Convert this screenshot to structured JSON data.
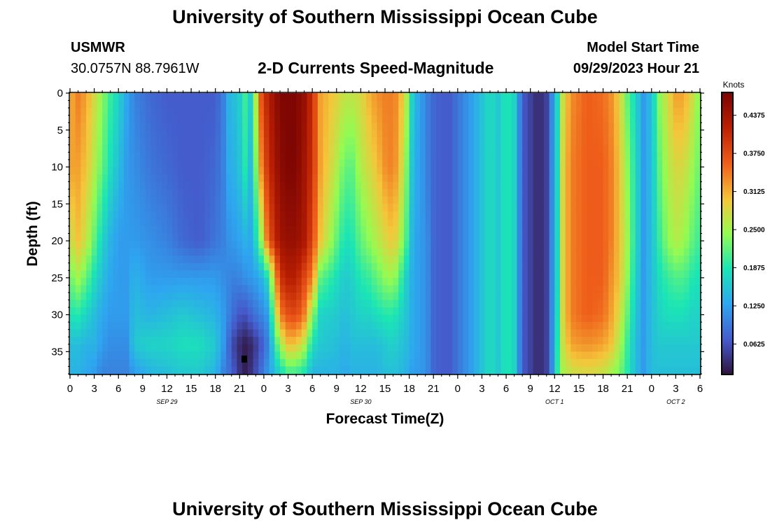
{
  "header": {
    "title": "University of Southern Mississippi Ocean Cube",
    "station": "USMWR",
    "coords": "30.0757N  88.7961W",
    "chart_title": "2-D Currents Speed-Magnitude",
    "model_label": "Model Start Time",
    "model_time": "09/29/2023 Hour 21"
  },
  "footer": {
    "title": "University of Southern Mississippi Ocean Cube"
  },
  "colorbar": {
    "unit": "Knots",
    "ticks": [
      "0.0625",
      "0.1250",
      "0.1875",
      "0.2500",
      "0.3125",
      "0.3750",
      "0.4375"
    ],
    "min": 0.0125,
    "max": 0.475
  },
  "chart_data": {
    "type": "heatmap",
    "title": "2-D Currents Speed-Magnitude",
    "xlabel": "Forecast Time(Z)",
    "ylabel": "Depth (ft)",
    "x_tick_labels": [
      "0",
      "3",
      "6",
      "9",
      "12",
      "15",
      "18",
      "21",
      "0",
      "3",
      "6",
      "9",
      "12",
      "15",
      "18",
      "21",
      "0",
      "3",
      "6",
      "9",
      "12",
      "15",
      "18",
      "21",
      "0",
      "3",
      "6"
    ],
    "x_range_hours": [
      0,
      78
    ],
    "date_labels": [
      {
        "label": "SEP 29",
        "hour": 12
      },
      {
        "label": "SEP 30",
        "hour": 36
      },
      {
        "label": "OCT 1",
        "hour": 60
      },
      {
        "label": "OCT 2",
        "hour": 75
      }
    ],
    "y_tick_labels": [
      "0",
      "5",
      "10",
      "15",
      "20",
      "25",
      "30",
      "35"
    ],
    "y_range_ft": [
      0,
      38
    ],
    "colorbar_unit": "Knots",
    "value_range_knots": [
      0.0125,
      0.475
    ],
    "profiles": {
      "hours": [
        0,
        0.5,
        1,
        2,
        3,
        4,
        5,
        6,
        7,
        8,
        10,
        12,
        14,
        16,
        18,
        19,
        20,
        20.7,
        21.5,
        22.5,
        23.5,
        24.5,
        26,
        27,
        28,
        29,
        30,
        31,
        33,
        34,
        35,
        36,
        37,
        38,
        39,
        40,
        40.5,
        41.5,
        42.5,
        43.5,
        44.5,
        45,
        46,
        47,
        48,
        50,
        52,
        53,
        54,
        55,
        56,
        57,
        58,
        59,
        59.5,
        60,
        60.5,
        61,
        62,
        64,
        66,
        67,
        68,
        69,
        70,
        71,
        72,
        73,
        74,
        75,
        76,
        77,
        78
      ],
      "depths_ft": [
        0,
        10,
        20,
        25,
        30,
        34,
        38
      ],
      "speed_knots": [
        [
          0.3,
          0.3,
          0.26,
          0.22,
          0.18,
          0.15,
          0.14
        ],
        [
          0.33,
          0.33,
          0.29,
          0.24,
          0.19,
          0.15,
          0.14
        ],
        [
          0.34,
          0.32,
          0.3,
          0.25,
          0.19,
          0.15,
          0.14
        ],
        [
          0.32,
          0.3,
          0.27,
          0.22,
          0.17,
          0.14,
          0.13
        ],
        [
          0.28,
          0.26,
          0.22,
          0.18,
          0.15,
          0.14,
          0.12
        ],
        [
          0.24,
          0.22,
          0.17,
          0.15,
          0.13,
          0.12,
          0.1
        ],
        [
          0.2,
          0.18,
          0.14,
          0.13,
          0.12,
          0.11,
          0.1
        ],
        [
          0.17,
          0.15,
          0.12,
          0.12,
          0.12,
          0.11,
          0.1
        ],
        [
          0.13,
          0.12,
          0.12,
          0.12,
          0.12,
          0.11,
          0.1
        ],
        [
          0.1,
          0.11,
          0.12,
          0.14,
          0.15,
          0.16,
          0.12
        ],
        [
          0.08,
          0.09,
          0.11,
          0.12,
          0.14,
          0.17,
          0.14
        ],
        [
          0.07,
          0.08,
          0.1,
          0.12,
          0.15,
          0.17,
          0.15
        ],
        [
          0.07,
          0.07,
          0.08,
          0.12,
          0.16,
          0.18,
          0.16
        ],
        [
          0.07,
          0.07,
          0.07,
          0.12,
          0.15,
          0.18,
          0.16
        ],
        [
          0.07,
          0.08,
          0.09,
          0.12,
          0.14,
          0.16,
          0.14
        ],
        [
          0.1,
          0.1,
          0.1,
          0.11,
          0.12,
          0.12,
          0.1
        ],
        [
          0.16,
          0.15,
          0.12,
          0.1,
          0.09,
          0.06,
          0.08
        ],
        [
          0.14,
          0.13,
          0.12,
          0.1,
          0.07,
          0.04,
          0.05
        ],
        [
          0.21,
          0.2,
          0.14,
          0.11,
          0.06,
          0.02,
          0.02
        ],
        [
          0.16,
          0.14,
          0.13,
          0.12,
          0.08,
          0.03,
          0.04
        ],
        [
          0.36,
          0.32,
          0.22,
          0.13,
          0.1,
          0.06,
          0.08
        ],
        [
          0.42,
          0.4,
          0.36,
          0.18,
          0.12,
          0.1,
          0.12
        ],
        [
          0.47,
          0.46,
          0.44,
          0.4,
          0.34,
          0.25,
          0.17
        ],
        [
          0.47,
          0.47,
          0.45,
          0.42,
          0.37,
          0.3,
          0.2
        ],
        [
          0.47,
          0.47,
          0.45,
          0.42,
          0.38,
          0.3,
          0.2
        ],
        [
          0.45,
          0.44,
          0.43,
          0.38,
          0.34,
          0.26,
          0.18
        ],
        [
          0.4,
          0.4,
          0.38,
          0.34,
          0.24,
          0.18,
          0.14
        ],
        [
          0.32,
          0.32,
          0.3,
          0.22,
          0.17,
          0.16,
          0.14
        ],
        [
          0.29,
          0.26,
          0.22,
          0.18,
          0.16,
          0.15,
          0.14
        ],
        [
          0.27,
          0.22,
          0.18,
          0.16,
          0.15,
          0.14,
          0.13
        ],
        [
          0.27,
          0.22,
          0.19,
          0.17,
          0.16,
          0.15,
          0.14
        ],
        [
          0.28,
          0.26,
          0.22,
          0.19,
          0.17,
          0.15,
          0.14
        ],
        [
          0.31,
          0.28,
          0.24,
          0.2,
          0.17,
          0.15,
          0.14
        ],
        [
          0.33,
          0.3,
          0.26,
          0.22,
          0.18,
          0.15,
          0.14
        ],
        [
          0.34,
          0.33,
          0.28,
          0.24,
          0.19,
          0.16,
          0.15
        ],
        [
          0.34,
          0.34,
          0.3,
          0.25,
          0.19,
          0.17,
          0.15
        ],
        [
          0.33,
          0.32,
          0.28,
          0.23,
          0.18,
          0.16,
          0.15
        ],
        [
          0.28,
          0.25,
          0.22,
          0.17,
          0.16,
          0.15,
          0.14
        ],
        [
          0.15,
          0.14,
          0.13,
          0.13,
          0.13,
          0.13,
          0.12
        ],
        [
          0.12,
          0.12,
          0.12,
          0.12,
          0.12,
          0.12,
          0.12
        ],
        [
          0.09,
          0.09,
          0.1,
          0.1,
          0.1,
          0.1,
          0.1
        ],
        [
          0.08,
          0.08,
          0.08,
          0.08,
          0.08,
          0.08,
          0.08
        ],
        [
          0.07,
          0.07,
          0.07,
          0.07,
          0.07,
          0.07,
          0.07
        ],
        [
          0.07,
          0.07,
          0.07,
          0.07,
          0.07,
          0.07,
          0.07
        ],
        [
          0.09,
          0.09,
          0.09,
          0.09,
          0.09,
          0.09,
          0.09
        ],
        [
          0.13,
          0.13,
          0.13,
          0.13,
          0.13,
          0.13,
          0.13
        ],
        [
          0.18,
          0.18,
          0.18,
          0.18,
          0.18,
          0.18,
          0.18
        ],
        [
          0.16,
          0.16,
          0.16,
          0.16,
          0.16,
          0.16,
          0.16
        ],
        [
          0.19,
          0.19,
          0.19,
          0.19,
          0.19,
          0.19,
          0.19
        ],
        [
          0.17,
          0.17,
          0.17,
          0.17,
          0.17,
          0.17,
          0.17
        ],
        [
          0.07,
          0.07,
          0.07,
          0.07,
          0.07,
          0.07,
          0.07
        ],
        [
          0.05,
          0.05,
          0.05,
          0.05,
          0.05,
          0.05,
          0.05
        ],
        [
          0.03,
          0.03,
          0.03,
          0.03,
          0.03,
          0.03,
          0.03
        ],
        [
          0.05,
          0.05,
          0.05,
          0.05,
          0.05,
          0.05,
          0.05
        ],
        [
          0.09,
          0.09,
          0.09,
          0.09,
          0.09,
          0.09,
          0.09
        ],
        [
          0.14,
          0.14,
          0.14,
          0.14,
          0.14,
          0.14,
          0.14
        ],
        [
          0.19,
          0.19,
          0.19,
          0.19,
          0.2,
          0.21,
          0.22
        ],
        [
          0.27,
          0.28,
          0.28,
          0.28,
          0.28,
          0.27,
          0.25
        ],
        [
          0.33,
          0.34,
          0.34,
          0.34,
          0.34,
          0.32,
          0.27
        ],
        [
          0.36,
          0.36,
          0.36,
          0.36,
          0.36,
          0.33,
          0.28
        ],
        [
          0.35,
          0.36,
          0.36,
          0.36,
          0.35,
          0.32,
          0.27
        ],
        [
          0.33,
          0.34,
          0.34,
          0.33,
          0.32,
          0.3,
          0.25
        ],
        [
          0.29,
          0.3,
          0.3,
          0.3,
          0.28,
          0.26,
          0.23
        ],
        [
          0.22,
          0.24,
          0.25,
          0.24,
          0.22,
          0.2,
          0.19
        ],
        [
          0.17,
          0.18,
          0.18,
          0.17,
          0.16,
          0.15,
          0.15
        ],
        [
          0.12,
          0.12,
          0.12,
          0.12,
          0.12,
          0.12,
          0.12
        ],
        [
          0.15,
          0.15,
          0.15,
          0.15,
          0.15,
          0.15,
          0.15
        ],
        [
          0.24,
          0.22,
          0.2,
          0.18,
          0.17,
          0.16,
          0.15
        ],
        [
          0.28,
          0.26,
          0.24,
          0.2,
          0.18,
          0.16,
          0.15
        ],
        [
          0.32,
          0.28,
          0.26,
          0.21,
          0.18,
          0.16,
          0.15
        ],
        [
          0.32,
          0.28,
          0.25,
          0.21,
          0.18,
          0.16,
          0.15
        ],
        [
          0.28,
          0.25,
          0.22,
          0.19,
          0.17,
          0.16,
          0.15
        ],
        [
          0.23,
          0.22,
          0.2,
          0.18,
          0.17,
          0.16,
          0.15
        ]
      ]
    }
  }
}
